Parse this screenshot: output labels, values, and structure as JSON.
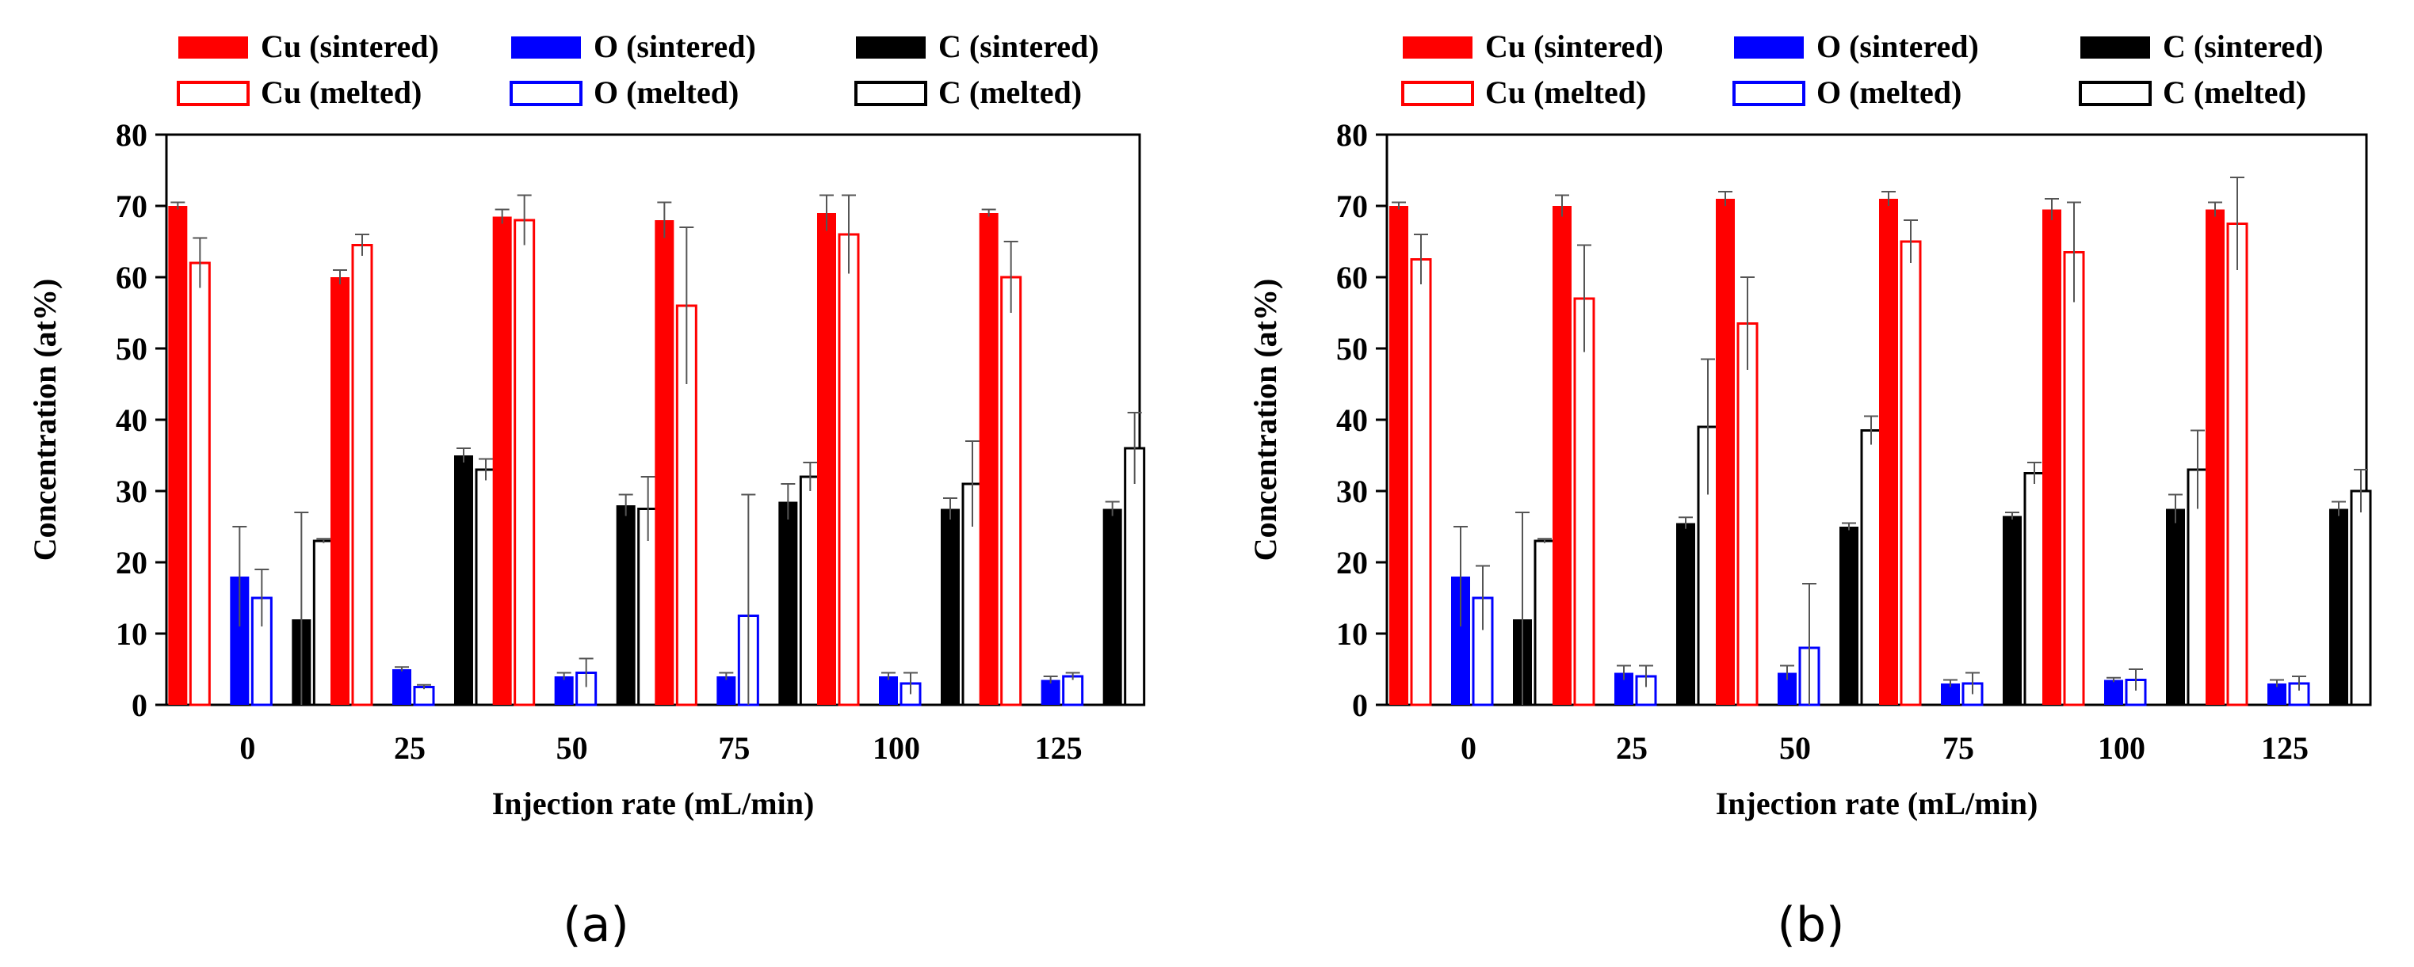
{
  "colors": {
    "cu": "#ff0000",
    "o": "#0000ff",
    "c": "#000000",
    "axis": "#000000",
    "hollow_fill": "#ffffff"
  },
  "legend": [
    {
      "label": "Cu (sintered)",
      "element": "cu",
      "style": "solid"
    },
    {
      "label": "O (sintered)",
      "element": "o",
      "style": "solid"
    },
    {
      "label": "C (sintered)",
      "element": "c",
      "style": "solid"
    },
    {
      "label": "Cu (melted)",
      "element": "cu",
      "style": "hollow"
    },
    {
      "label": "O (melted)",
      "element": "o",
      "style": "hollow"
    },
    {
      "label": "C (melted)",
      "element": "c",
      "style": "hollow"
    }
  ],
  "chart_data": [
    {
      "type": "bar",
      "panel_label": "(a)",
      "title": "",
      "xlabel": "Injection rate (mL/min)",
      "ylabel": "Concentration (at%)",
      "ylim": [
        0,
        80
      ],
      "yticks": [
        0,
        10,
        20,
        30,
        40,
        50,
        60,
        70,
        80
      ],
      "categories": [
        "0",
        "25",
        "50",
        "75",
        "100",
        "125"
      ],
      "series": [
        {
          "name": "Cu (sintered)",
          "element": "cu",
          "style": "solid",
          "values": [
            70,
            60,
            68.5,
            68,
            69,
            69
          ],
          "errors": [
            0.5,
            1,
            1,
            2.5,
            2.5,
            0.5
          ]
        },
        {
          "name": "Cu (melted)",
          "element": "cu",
          "style": "hollow",
          "values": [
            62,
            64.5,
            68,
            56,
            66,
            60
          ],
          "errors": [
            3.5,
            1.5,
            3.5,
            11,
            5.5,
            5
          ]
        },
        {
          "name": "O (sintered)",
          "element": "o",
          "style": "solid",
          "values": [
            18,
            5,
            4,
            4,
            4,
            3.5
          ],
          "errors": [
            7,
            0.3,
            0.5,
            0.5,
            0.5,
            0.5
          ]
        },
        {
          "name": "O (melted)",
          "element": "o",
          "style": "hollow",
          "values": [
            15,
            2.5,
            4.5,
            12.5,
            3,
            4
          ],
          "errors": [
            4,
            0.3,
            2,
            17,
            1.5,
            0.5
          ]
        },
        {
          "name": "C (sintered)",
          "element": "c",
          "style": "solid",
          "values": [
            12,
            35,
            28,
            28.5,
            27.5,
            27.5
          ],
          "errors": [
            15,
            1,
            1.5,
            2.5,
            1.5,
            1
          ]
        },
        {
          "name": "C (melted)",
          "element": "c",
          "style": "hollow",
          "values": [
            23,
            33,
            27.5,
            32,
            31,
            36
          ],
          "errors": [
            0.3,
            1.5,
            4.5,
            2,
            6,
            5
          ]
        }
      ]
    },
    {
      "type": "bar",
      "panel_label": "(b)",
      "title": "",
      "xlabel": "Injection rate (mL/min)",
      "ylabel": "Concentration (at%)",
      "ylim": [
        0,
        80
      ],
      "yticks": [
        0,
        10,
        20,
        30,
        40,
        50,
        60,
        70,
        80
      ],
      "categories": [
        "0",
        "25",
        "50",
        "75",
        "100",
        "125"
      ],
      "series": [
        {
          "name": "Cu (sintered)",
          "element": "cu",
          "style": "solid",
          "values": [
            70,
            70,
            71,
            71,
            69.5,
            69.5
          ],
          "errors": [
            0.5,
            1.5,
            1,
            1,
            1.5,
            1
          ]
        },
        {
          "name": "Cu (melted)",
          "element": "cu",
          "style": "hollow",
          "values": [
            62.5,
            57,
            53.5,
            65,
            63.5,
            67.5
          ],
          "errors": [
            3.5,
            7.5,
            6.5,
            3,
            7,
            6.5
          ]
        },
        {
          "name": "O (sintered)",
          "element": "o",
          "style": "solid",
          "values": [
            18,
            4.5,
            4.5,
            3,
            3.5,
            3
          ],
          "errors": [
            7,
            1,
            1,
            0.5,
            0.3,
            0.5
          ]
        },
        {
          "name": "O (melted)",
          "element": "o",
          "style": "hollow",
          "values": [
            15,
            4,
            8,
            3,
            3.5,
            3
          ],
          "errors": [
            4.5,
            1.5,
            9,
            1.5,
            1.5,
            1
          ]
        },
        {
          "name": "C (sintered)",
          "element": "c",
          "style": "solid",
          "values": [
            12,
            25.5,
            25,
            26.5,
            27.5,
            27.5
          ],
          "errors": [
            15,
            0.8,
            0.5,
            0.5,
            2,
            1
          ]
        },
        {
          "name": "C (melted)",
          "element": "c",
          "style": "hollow",
          "values": [
            23,
            39,
            38.5,
            32.5,
            33,
            30
          ],
          "errors": [
            0.3,
            9.5,
            2,
            1.5,
            5.5,
            3
          ]
        }
      ]
    }
  ]
}
